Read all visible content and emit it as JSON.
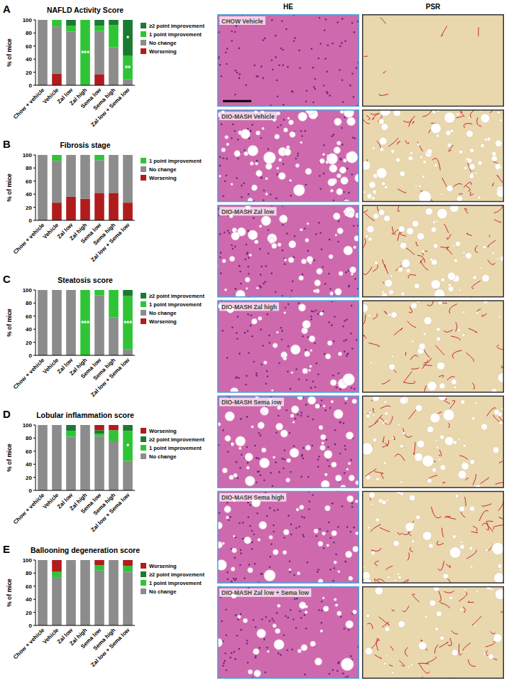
{
  "chart_data": [
    {
      "type": "bar",
      "panel": "A",
      "title": "NAFLD Activity Score",
      "y_label": "% of mice",
      "stacked": true,
      "categories": [
        "Chow + vehicle",
        "Vehicle",
        "Zal low",
        "Zal high",
        "Sema low",
        "Sema high",
        "Zal low + Sema low"
      ],
      "ylim": [
        0,
        100
      ],
      "yticks": [
        0,
        20,
        40,
        60,
        80,
        100
      ],
      "legend": "right",
      "series": [
        {
          "name": "Worsening",
          "color": "#b01c1c",
          "values": [
            0,
            18,
            0,
            0,
            17,
            0,
            0
          ]
        },
        {
          "name": "No change",
          "color": "#8c8c8c",
          "values": [
            100,
            72,
            82,
            0,
            66,
            58,
            9
          ]
        },
        {
          "name": "1 point improvement",
          "color": "#2fc436",
          "values": [
            0,
            10,
            9,
            100,
            8,
            34,
            36
          ]
        },
        {
          "name": "≥2 point improvement",
          "color": "#1a7a30",
          "values": [
            0,
            0,
            9,
            0,
            9,
            8,
            55
          ]
        }
      ],
      "annotations": [
        {
          "text": "***",
          "series_index": 2,
          "category_index": 3
        },
        {
          "text": "**",
          "series_index": 2,
          "category_index": 6
        },
        {
          "text": "*",
          "series_index": 3,
          "category_index": 6
        }
      ]
    },
    {
      "type": "bar",
      "panel": "B",
      "title": "Fibrosis stage",
      "y_label": "% of mice",
      "stacked": true,
      "categories": [
        "Chow + vehicle",
        "Vehicle",
        "Zal low",
        "Zal high",
        "Sema low",
        "Sema high",
        "Zal low + Sema low"
      ],
      "ylim": [
        0,
        100
      ],
      "yticks": [
        0,
        20,
        40,
        60,
        80,
        100
      ],
      "legend": "right",
      "series": [
        {
          "name": "Worsening",
          "color": "#b01c1c",
          "values": [
            0,
            27,
            36,
            33,
            42,
            42,
            27
          ]
        },
        {
          "name": "No change",
          "color": "#8c8c8c",
          "values": [
            100,
            64,
            64,
            67,
            50,
            58,
            73
          ]
        },
        {
          "name": "1 point improvement",
          "color": "#2fc436",
          "values": [
            0,
            9,
            0,
            0,
            8,
            0,
            0
          ]
        }
      ],
      "annotations": []
    },
    {
      "type": "bar",
      "panel": "C",
      "title": "Steatosis score",
      "y_label": "% of mice",
      "stacked": true,
      "categories": [
        "Chow + vehicle",
        "Vehicle",
        "Zal low",
        "Zal high",
        "Sema low",
        "Sema high",
        "Zal low + Sema low"
      ],
      "ylim": [
        0,
        100
      ],
      "yticks": [
        0,
        20,
        40,
        60,
        80,
        100
      ],
      "legend": "right",
      "series": [
        {
          "name": "Worsening",
          "color": "#b01c1c",
          "values": [
            0,
            0,
            0,
            0,
            0,
            0,
            0
          ]
        },
        {
          "name": "No change",
          "color": "#8c8c8c",
          "values": [
            100,
            100,
            100,
            0,
            92,
            58,
            9
          ]
        },
        {
          "name": "1 point improvement",
          "color": "#2fc436",
          "values": [
            0,
            0,
            0,
            100,
            8,
            42,
            82
          ]
        },
        {
          "name": "≥2 point improvement",
          "color": "#1a7a30",
          "values": [
            0,
            0,
            0,
            0,
            0,
            0,
            9
          ]
        }
      ],
      "annotations": [
        {
          "text": "***",
          "series_index": 2,
          "category_index": 3
        },
        {
          "text": "***",
          "series_index": 2,
          "category_index": 6
        }
      ]
    },
    {
      "type": "bar",
      "panel": "D",
      "title": "Lobular inflammation score",
      "y_label": "% of mice",
      "stacked": true,
      "categories": [
        "Chow + vehicle",
        "Vehicle",
        "Zal low",
        "Zal high",
        "Sema low",
        "Sema high",
        "Zal low + Sema low"
      ],
      "ylim": [
        0,
        100
      ],
      "yticks": [
        0,
        20,
        40,
        60,
        80,
        100
      ],
      "legend": "right",
      "series": [
        {
          "name": "No change",
          "color": "#8c8c8c",
          "values": [
            100,
            100,
            82,
            100,
            83,
            75,
            45
          ]
        },
        {
          "name": "1 point improvement",
          "color": "#2fc436",
          "values": [
            0,
            0,
            9,
            0,
            4,
            17,
            46
          ]
        },
        {
          "name": "≥2 point improvement",
          "color": "#1a7a30",
          "values": [
            0,
            0,
            9,
            0,
            5,
            0,
            9
          ]
        },
        {
          "name": "Worsening",
          "color": "#b01c1c",
          "values": [
            0,
            0,
            0,
            0,
            8,
            8,
            0
          ]
        }
      ],
      "annotations": [
        {
          "text": "*",
          "series_index": 1,
          "category_index": 6
        }
      ]
    },
    {
      "type": "bar",
      "panel": "E",
      "title": "Ballooning degeneration score",
      "y_label": "% of mice",
      "stacked": true,
      "categories": [
        "Chow + vehicle",
        "Vehicle",
        "Zal low",
        "Zal high",
        "Sema low",
        "Sema high",
        "Zal low + Sema low"
      ],
      "ylim": [
        0,
        100
      ],
      "yticks": [
        0,
        20,
        40,
        60,
        80,
        100
      ],
      "legend": "right",
      "series": [
        {
          "name": "No change",
          "color": "#8c8c8c",
          "values": [
            100,
            73,
            100,
            100,
            84,
            100,
            82
          ]
        },
        {
          "name": "1 point improvement",
          "color": "#2fc436",
          "values": [
            0,
            9,
            0,
            0,
            8,
            0,
            9
          ]
        },
        {
          "name": "≥2 point improvement",
          "color": "#1a7a30",
          "values": [
            0,
            0,
            0,
            0,
            0,
            0,
            0
          ]
        },
        {
          "name": "Worsening",
          "color": "#b01c1c",
          "values": [
            0,
            18,
            0,
            0,
            8,
            0,
            9
          ]
        }
      ],
      "annotations": []
    }
  ],
  "micrographs": {
    "column_titles": [
      "HE",
      "PSR"
    ],
    "row_labels": [
      "CHOW Vehicle",
      "DIO-MASH Vehicle",
      "DIO-MASH Zal low",
      "DIO-MASH Zal high",
      "DIO-MASH Sema low",
      "DIO-MASH Sema high",
      "DIO-MASH Zal low + Sema low"
    ]
  }
}
